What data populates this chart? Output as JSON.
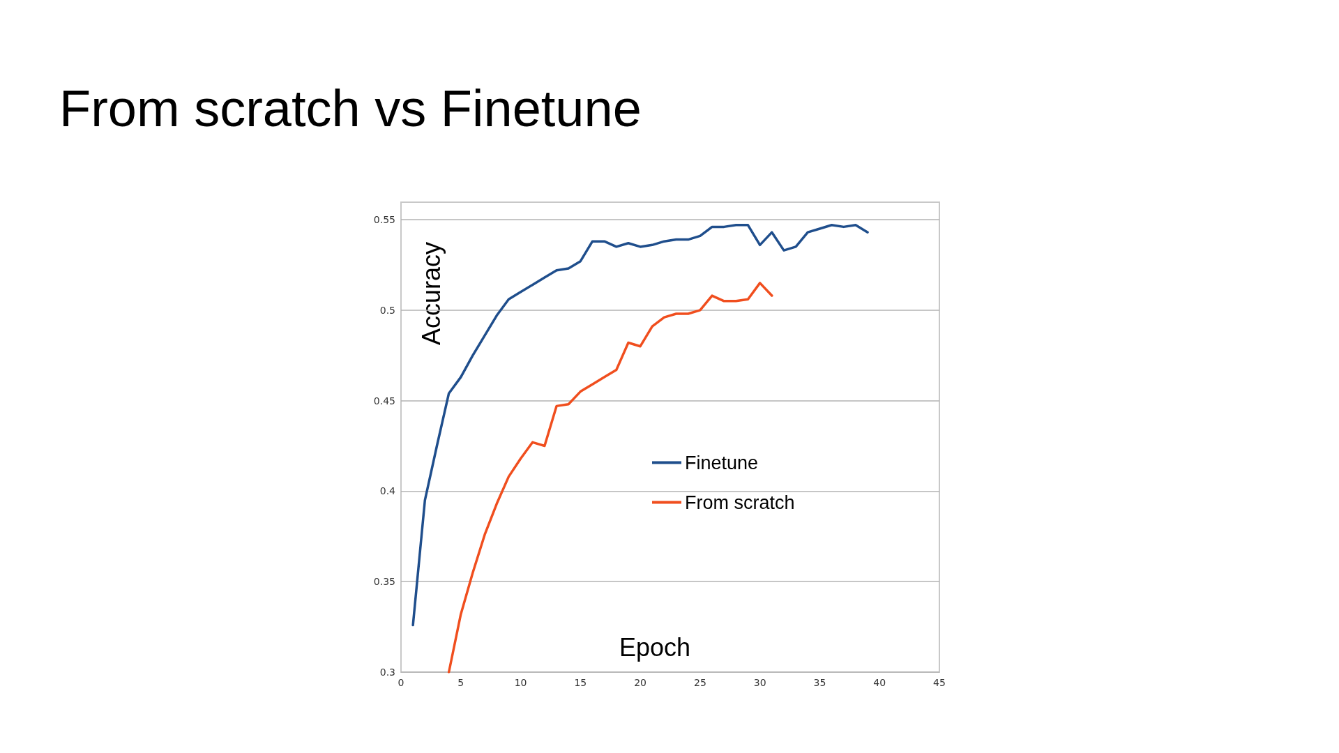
{
  "chart_data": {
    "type": "line",
    "title": "From scratch vs Finetune",
    "xlabel": "Epoch",
    "ylabel": "Accuracy",
    "xlim": [
      0,
      45
    ],
    "xticks": [
      0,
      5,
      10,
      15,
      20,
      25,
      30,
      35,
      40,
      45
    ],
    "ylim": [
      0.3,
      0.55
    ],
    "yticks": [
      0.3,
      0.35,
      0.4,
      0.45,
      0.5,
      0.55
    ],
    "grid": "y",
    "legend": "center",
    "marker": "none",
    "line_style": "solid",
    "series": [
      {
        "name": "Finetune",
        "color": "#1f4e8c",
        "x": [
          1,
          2,
          3,
          4,
          5,
          6,
          7,
          8,
          9,
          10,
          11,
          12,
          13,
          14,
          15,
          16,
          17,
          18,
          19,
          20,
          21,
          22,
          23,
          24,
          25,
          26,
          27,
          28,
          29,
          30,
          31,
          32,
          33,
          34,
          35,
          36,
          37,
          38,
          39
        ],
        "values": [
          0.326,
          0.395,
          0.425,
          0.454,
          0.463,
          0.475,
          0.486,
          0.497,
          0.506,
          0.51,
          0.514,
          0.518,
          0.522,
          0.523,
          0.527,
          0.538,
          0.538,
          0.535,
          0.537,
          0.535,
          0.536,
          0.538,
          0.539,
          0.539,
          0.541,
          0.546,
          0.546,
          0.547,
          0.547,
          0.536,
          0.543,
          0.533,
          0.535,
          0.543,
          0.545,
          0.547,
          0.546,
          0.547,
          0.543
        ]
      },
      {
        "name": "From scratch",
        "color": "#f04e1e",
        "x": [
          4,
          5,
          6,
          7,
          8,
          9,
          10,
          11,
          12,
          13,
          14,
          15,
          16,
          17,
          18,
          19,
          20,
          21,
          22,
          23,
          24,
          25,
          26,
          27,
          28,
          29,
          30,
          31
        ],
        "values": [
          0.3,
          0.332,
          0.355,
          0.376,
          0.393,
          0.408,
          0.418,
          0.427,
          0.425,
          0.447,
          0.448,
          0.455,
          0.459,
          0.463,
          0.467,
          0.482,
          0.48,
          0.491,
          0.496,
          0.498,
          0.498,
          0.5,
          0.508,
          0.505,
          0.505,
          0.506,
          0.515,
          0.508
        ]
      }
    ]
  }
}
